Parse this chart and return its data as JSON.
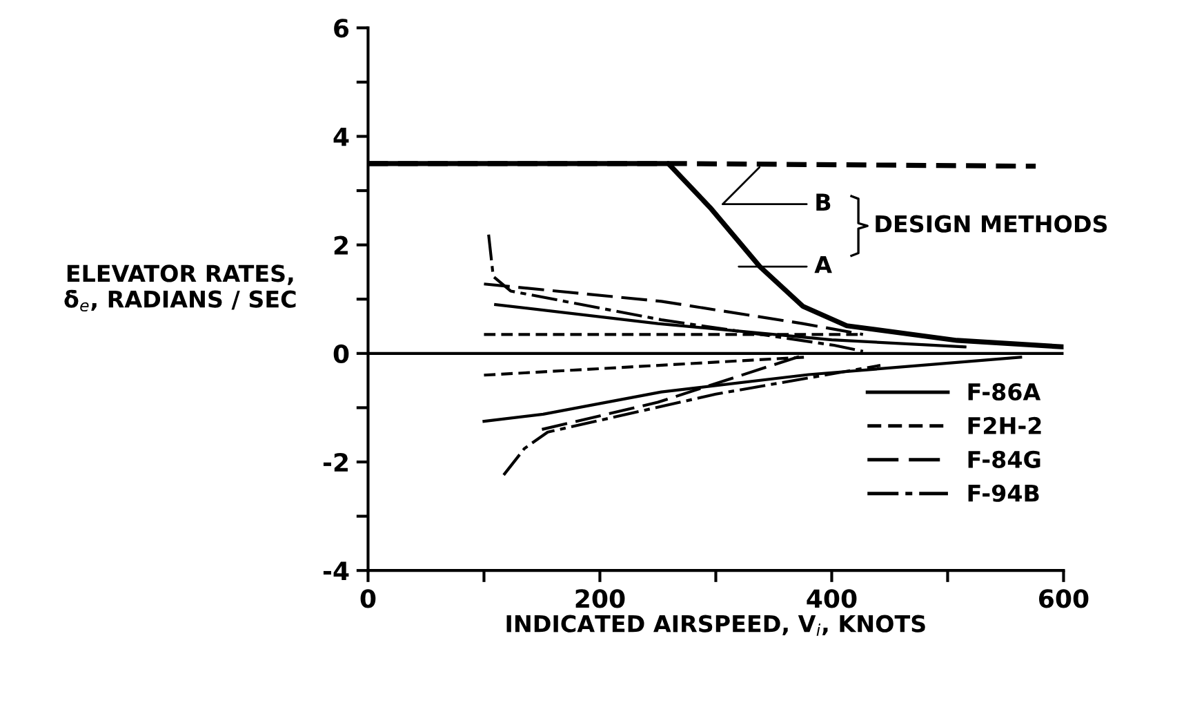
{
  "chart_data": {
    "type": "line",
    "xlabel": "INDICATED AIRSPEED, V$_{i}$, KNOTS",
    "ylabel": "ELEVATOR RATES,\nδ̇$_{e}$, RADIANS / SEC",
    "xlim": [
      0,
      600
    ],
    "ylim": [
      -4,
      6
    ],
    "xticks": [
      0,
      {
        "value": 100,
        "label": null
      },
      200,
      {
        "value": 300,
        "label": null
      },
      400,
      {
        "value": 500,
        "label": null
      },
      600
    ],
    "yticks": [
      -4,
      {
        "value": -3,
        "label": null
      },
      -2,
      {
        "value": -1,
        "label": null
      },
      0,
      {
        "value": 1,
        "label": null
      },
      2,
      {
        "value": 3,
        "label": null
      },
      4,
      {
        "value": 5,
        "label": null
      },
      6
    ],
    "ref_lines": [
      {
        "axis": "y",
        "value": 0,
        "color": "#000000",
        "line_style": "solid"
      }
    ],
    "grid": false,
    "legend": "bottom right",
    "marker": "none",
    "annotations": [
      "DESIGN METHODS"
    ],
    "series": [
      {
        "name": "A",
        "color": "#000000",
        "line_style": "solid",
        "x": [
          0,
          259,
          295,
          338,
          375,
          413,
          508,
          600
        ],
        "values": [
          3.5,
          3.5,
          2.69,
          1.6,
          0.87,
          0.51,
          0.24,
          0.12
        ]
      },
      {
        "name": "B",
        "color": "#000000",
        "line_style": "dashed",
        "x": [
          0,
          259,
          576
        ],
        "values": [
          3.5,
          3.5,
          3.45
        ]
      },
      {
        "name": "F-86A",
        "color": "#000000",
        "line_style": "solid",
        "x": [
          110,
          250,
          400,
          515,
          null,
          100,
          151,
          253,
          380,
          563
        ],
        "values": [
          0.9,
          0.55,
          0.25,
          0.12,
          null,
          -1.25,
          -1.12,
          -0.71,
          -0.39,
          -0.07
        ]
      },
      {
        "name": "F2H-2",
        "color": "#000000",
        "line_style": "dashed",
        "x": [
          100,
          427,
          null,
          100,
          376
        ],
        "values": [
          0.35,
          0.35,
          null,
          -0.4,
          -0.07
        ]
      },
      {
        "name": "F-84G",
        "color": "#000000",
        "line_style": "long_dash",
        "x": [
          100,
          253,
          375,
          427,
          null,
          150,
          250,
          376
        ],
        "values": [
          1.28,
          0.96,
          0.55,
          0.35,
          null,
          -1.4,
          -0.9,
          -0.03
        ]
      },
      {
        "name": "F-94B",
        "color": "#000000",
        "line_style": "dash_dot",
        "x": [
          104,
          108,
          123,
          253,
          402,
          427,
          null,
          117,
          135,
          155,
          300,
          442
        ],
        "values": [
          2.19,
          1.42,
          1.15,
          0.62,
          0.15,
          0.04,
          null,
          -2.24,
          -1.75,
          -1.45,
          -0.75,
          -0.22
        ]
      }
    ]
  }
}
